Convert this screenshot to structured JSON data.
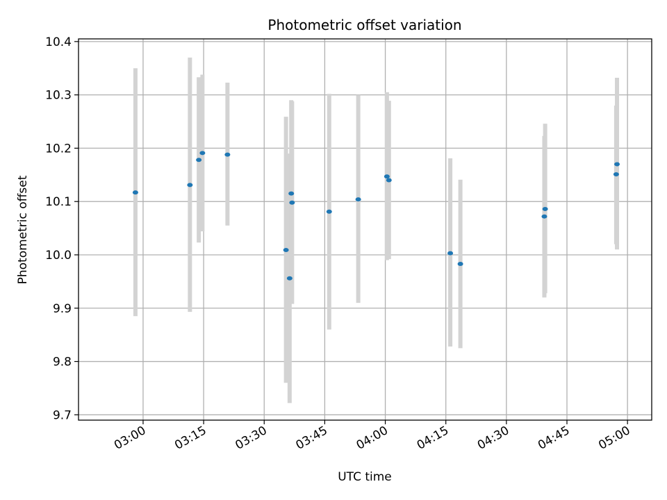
{
  "chart_data": {
    "type": "scatter",
    "title": "Photometric offset variation",
    "xlabel": "UTC time",
    "ylabel": "Photometric offset",
    "xlim_minutes": [
      164,
      306
    ],
    "ylim": [
      9.69,
      10.405
    ],
    "grid": true,
    "x_ticks": [
      {
        "minutes": 180,
        "label": "03:00"
      },
      {
        "minutes": 195,
        "label": "03:15"
      },
      {
        "minutes": 210,
        "label": "03:30"
      },
      {
        "minutes": 225,
        "label": "03:45"
      },
      {
        "minutes": 240,
        "label": "04:00"
      },
      {
        "minutes": 255,
        "label": "04:15"
      },
      {
        "minutes": 270,
        "label": "04:30"
      },
      {
        "minutes": 285,
        "label": "04:45"
      },
      {
        "minutes": 300,
        "label": "05:00"
      }
    ],
    "y_ticks": [
      {
        "value": 9.7,
        "label": "9.7"
      },
      {
        "value": 9.8,
        "label": "9.8"
      },
      {
        "value": 9.9,
        "label": "9.9"
      },
      {
        "value": 10.0,
        "label": "10.0"
      },
      {
        "value": 10.1,
        "label": "10.1"
      },
      {
        "value": 10.2,
        "label": "10.2"
      },
      {
        "value": 10.3,
        "label": "10.3"
      },
      {
        "value": 10.4,
        "label": "10.4"
      }
    ],
    "point_color": "#1f77b4",
    "errorbar_color": "#d3d3d3",
    "points": [
      {
        "time": "02:58",
        "minutes": 178.1,
        "value": 10.117,
        "low": 9.885,
        "high": 10.35
      },
      {
        "time": "03:11",
        "minutes": 191.6,
        "value": 10.131,
        "low": 9.893,
        "high": 10.37
      },
      {
        "time": "03:14",
        "minutes": 193.8,
        "value": 10.178,
        "low": 10.023,
        "high": 10.333
      },
      {
        "time": "03:15",
        "minutes": 194.7,
        "value": 10.191,
        "low": 10.044,
        "high": 10.338
      },
      {
        "time": "03:21",
        "minutes": 200.9,
        "value": 10.188,
        "low": 10.055,
        "high": 10.323
      },
      {
        "time": "03:35",
        "minutes": 215.4,
        "value": 10.009,
        "low": 9.76,
        "high": 10.259
      },
      {
        "time": "03:36",
        "minutes": 216.3,
        "value": 9.956,
        "low": 9.722,
        "high": 10.19
      },
      {
        "time": "03:37",
        "minutes": 216.7,
        "value": 10.115,
        "low": 9.94,
        "high": 10.29
      },
      {
        "time": "03:37",
        "minutes": 216.9,
        "value": 10.098,
        "low": 9.908,
        "high": 10.288
      },
      {
        "time": "03:46",
        "minutes": 226.1,
        "value": 10.081,
        "low": 9.86,
        "high": 10.302
      },
      {
        "time": "03:53",
        "minutes": 233.3,
        "value": 10.104,
        "low": 9.91,
        "high": 10.3
      },
      {
        "time": "04:00",
        "minutes": 240.4,
        "value": 10.147,
        "low": 9.99,
        "high": 10.305
      },
      {
        "time": "04:01",
        "minutes": 240.9,
        "value": 10.14,
        "low": 9.992,
        "high": 10.289
      },
      {
        "time": "04:16",
        "minutes": 256.1,
        "value": 10.003,
        "low": 9.828,
        "high": 10.181
      },
      {
        "time": "04:18",
        "minutes": 258.6,
        "value": 9.983,
        "low": 9.825,
        "high": 10.141
      },
      {
        "time": "04:39",
        "minutes": 279.4,
        "value": 10.072,
        "low": 9.92,
        "high": 10.223
      },
      {
        "time": "04:39",
        "minutes": 279.6,
        "value": 10.086,
        "low": 9.928,
        "high": 10.246
      },
      {
        "time": "04:56",
        "minutes": 297.2,
        "value": 10.151,
        "low": 10.02,
        "high": 10.28
      },
      {
        "time": "04:56",
        "minutes": 297.4,
        "value": 10.17,
        "low": 10.01,
        "high": 10.332
      }
    ]
  }
}
